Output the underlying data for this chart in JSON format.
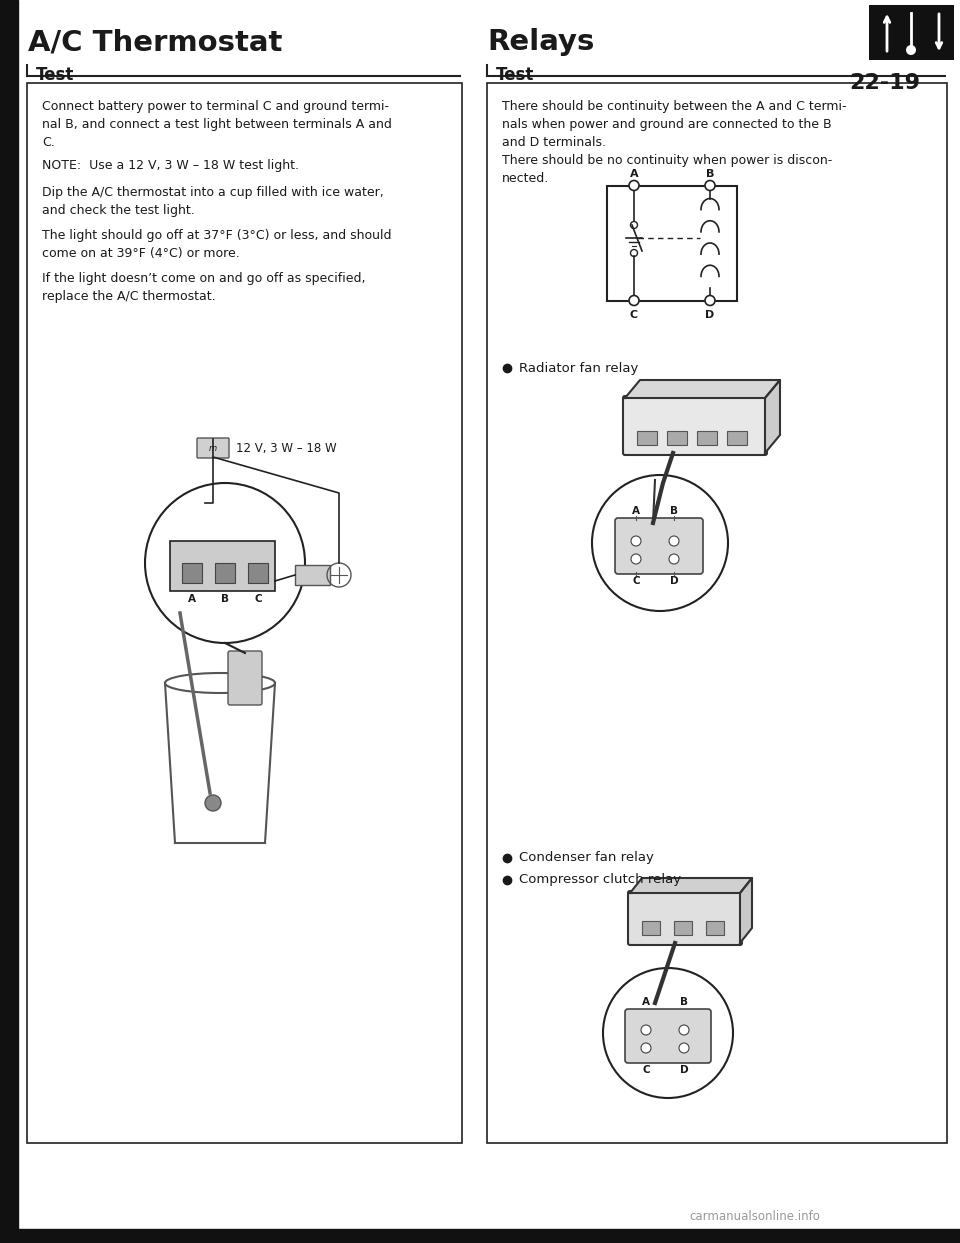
{
  "title_left": "A/C Thermostat",
  "title_right": "Relays",
  "section_left": "Test",
  "section_right": "Test",
  "left_text_blocks": [
    "Connect battery power to terminal C and ground termi-\nnal B, and connect a test light between terminals A and\nC.",
    "NOTE:  Use a 12 V, 3 W – 18 W test light.",
    "Dip the A/C thermostat into a cup filled with ice water,\nand check the test light.",
    "The light should go off at 37°F (3°C) or less, and should\ncome on at 39°F (4°C) or more.",
    "If the light doesn’t come on and go off as specified,\nreplace the A/C thermostat."
  ],
  "right_text_blocks": [
    "There should be continuity between the A and C termi-\nnals when power and ground are connected to the B\nand D terminals.\nThere should be no continuity when power is discon-\nnected."
  ],
  "diagram_label": "12 V, 3 W – 18 W",
  "bullet_mid": "Radiator fan relay",
  "bullet_bot1": "Condenser fan relay",
  "bullet_bot2": "Compressor clutch relay",
  "page_number": "22-19",
  "watermark": "carmanualsonline.info",
  "bg_color": "#ffffff",
  "text_color": "#1a1a1a",
  "border_color": "#222222",
  "icon_bg": "#111111"
}
